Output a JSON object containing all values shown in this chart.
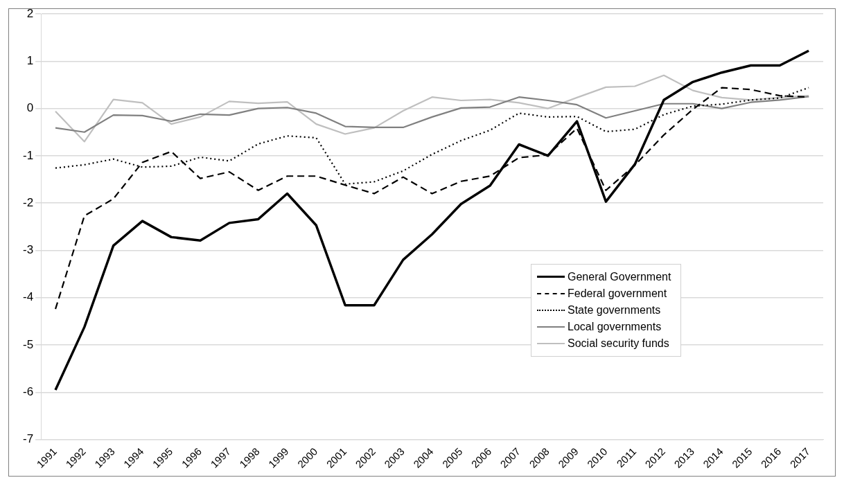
{
  "chart_data": {
    "type": "line",
    "categories": [
      "1991",
      "1992",
      "1993",
      "1994",
      "1995",
      "1996",
      "1997",
      "1998",
      "1999",
      "2000",
      "2001",
      "2002",
      "2003",
      "2004",
      "2005",
      "2006",
      "2007",
      "2008",
      "2009",
      "2010",
      "2011",
      "2012",
      "2013",
      "2014",
      "2015",
      "2016",
      "2017"
    ],
    "series": [
      {
        "name": "General Government",
        "color": "#000000",
        "line_style": "solid",
        "values": [
          -5.95,
          -4.62,
          -2.9,
          -2.38,
          -2.72,
          -2.79,
          -2.42,
          -2.34,
          -1.8,
          -2.47,
          -4.16,
          -4.16,
          -3.2,
          -2.66,
          -2.02,
          -1.63,
          -0.76,
          -1.0,
          -0.27,
          -1.97,
          -1.18,
          0.18,
          0.56,
          0.76,
          0.91,
          0.91,
          1.22
        ]
      },
      {
        "name": "Federal government",
        "color": "#000000",
        "line_style": "dashed",
        "values": [
          -4.24,
          -2.27,
          -1.91,
          -1.14,
          -0.91,
          -1.48,
          -1.34,
          -1.73,
          -1.43,
          -1.43,
          -1.62,
          -1.8,
          -1.45,
          -1.8,
          -1.54,
          -1.43,
          -1.04,
          -0.98,
          -0.42,
          -1.73,
          -1.2,
          -0.56,
          -0.02,
          0.44,
          0.4,
          0.27,
          0.24
        ]
      },
      {
        "name": "State governments",
        "color": "#000000",
        "line_style": "dotted",
        "values": [
          -1.26,
          -1.19,
          -1.07,
          -1.24,
          -1.22,
          -1.03,
          -1.11,
          -0.75,
          -0.58,
          -0.62,
          -1.6,
          -1.55,
          -1.32,
          -0.97,
          -0.68,
          -0.46,
          -0.1,
          -0.18,
          -0.17,
          -0.49,
          -0.44,
          -0.13,
          0.05,
          0.09,
          0.18,
          0.22,
          0.44
        ]
      },
      {
        "name": "Local governments",
        "color": "#808080",
        "line_style": "solid",
        "values": [
          -0.41,
          -0.5,
          -0.14,
          -0.15,
          -0.27,
          -0.12,
          -0.14,
          0.0,
          0.02,
          -0.1,
          -0.38,
          -0.4,
          -0.4,
          -0.18,
          0.01,
          0.03,
          0.24,
          0.17,
          0.08,
          -0.2,
          -0.05,
          0.1,
          0.1,
          0.0,
          0.13,
          0.18,
          0.25
        ]
      },
      {
        "name": "Social security funds",
        "color": "#bfbfbf",
        "line_style": "solid",
        "values": [
          -0.06,
          -0.7,
          0.19,
          0.12,
          -0.33,
          -0.18,
          0.15,
          0.11,
          0.14,
          -0.33,
          -0.54,
          -0.41,
          -0.05,
          0.24,
          0.17,
          0.19,
          0.12,
          0.0,
          0.23,
          0.45,
          0.47,
          0.7,
          0.38,
          0.23,
          0.18,
          0.23,
          0.27
        ]
      }
    ],
    "ylim": [
      -7,
      2
    ],
    "yticks": [
      -7,
      -6,
      -5,
      -4,
      -3,
      -2,
      -1,
      0,
      1,
      2
    ],
    "grid": "y",
    "legend": "bottom right",
    "marker": "none"
  }
}
